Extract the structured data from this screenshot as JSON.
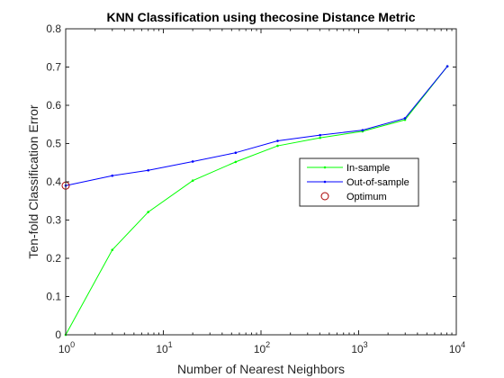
{
  "chart_data": {
    "type": "line",
    "title": "KNN Classification using thecosine Distance Metric",
    "xlabel": "Number of Nearest Neighbors",
    "ylabel": "Ten-fold Classification Error",
    "xscale": "log",
    "xlim": [
      1,
      10000
    ],
    "ylim": [
      0,
      0.8
    ],
    "xticks": [
      {
        "value": 1,
        "base": "10",
        "exp": "0"
      },
      {
        "value": 10,
        "base": "10",
        "exp": "1"
      },
      {
        "value": 100,
        "base": "10",
        "exp": "2"
      },
      {
        "value": 1000,
        "base": "10",
        "exp": "3"
      },
      {
        "value": 10000,
        "base": "10",
        "exp": "4"
      }
    ],
    "yticks": [
      "0",
      "0.1",
      "0.2",
      "0.3",
      "0.4",
      "0.5",
      "0.6",
      "0.7",
      "0.8"
    ],
    "grid": false,
    "legend_position": "right",
    "series": [
      {
        "name": "In-sample",
        "color": "#00ff00",
        "marker": "point",
        "x": [
          1,
          3,
          7,
          20,
          55,
          148,
          403,
          1097,
          2981,
          8103
        ],
        "y": [
          0.0,
          0.222,
          0.321,
          0.403,
          0.452,
          0.494,
          0.515,
          0.532,
          0.562,
          0.702
        ]
      },
      {
        "name": "Out-of-sample",
        "color": "#0000ff",
        "marker": "point",
        "x": [
          1,
          3,
          7,
          20,
          55,
          148,
          403,
          1097,
          2981,
          8103
        ],
        "y": [
          0.39,
          0.416,
          0.43,
          0.453,
          0.476,
          0.507,
          0.522,
          0.535,
          0.566,
          0.702
        ]
      },
      {
        "name": "Optimum",
        "color": "#aa0000",
        "marker": "circle",
        "x": [
          1
        ],
        "y": [
          0.39
        ]
      }
    ]
  }
}
